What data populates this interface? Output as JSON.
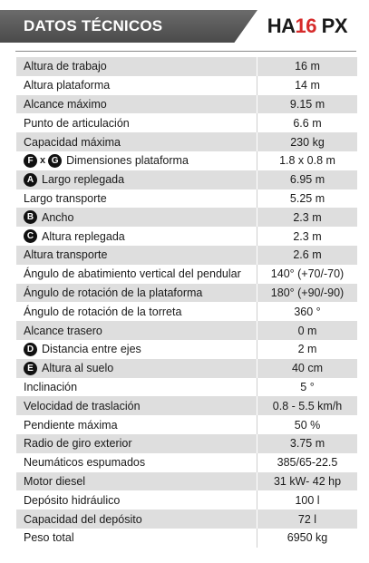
{
  "header": {
    "title": "DATOS TÉCNICOS",
    "model_prefix": "HA",
    "model_number": "16",
    "model_suffix": " PX"
  },
  "rows": [
    {
      "label": "Altura de trabajo",
      "value": "16 m"
    },
    {
      "label": "Altura plataforma",
      "value": "14 m"
    },
    {
      "label": "Alcance máximo",
      "value": "9.15 m"
    },
    {
      "label": "Punto de articulación",
      "value": "6.6 m"
    },
    {
      "label": "Capacidad máxima",
      "value": "230 kg"
    },
    {
      "badge": "F",
      "x": "x",
      "badge2": "G",
      "label": "Dimensiones plataforma",
      "value": "1.8 x 0.8 m"
    },
    {
      "badge": "A",
      "label": "Largo replegada",
      "value": "6.95 m"
    },
    {
      "label": "Largo transporte",
      "value": "5.25 m"
    },
    {
      "badge": "B",
      "label": "Ancho",
      "value": "2.3 m"
    },
    {
      "badge": "C",
      "label": "Altura replegada",
      "value": "2.3 m"
    },
    {
      "label": "Altura transporte",
      "value": "2.6 m"
    },
    {
      "label": "Ángulo de abatimiento vertical del pendular",
      "value": "140° (+70/-70)"
    },
    {
      "label": "Ángulo de rotación de la plataforma",
      "value": "180° (+90/-90)"
    },
    {
      "label": "Ángulo de rotación de la torreta",
      "value": "360 °"
    },
    {
      "label": "Alcance trasero",
      "value": "0 m"
    },
    {
      "badge": "D",
      "label": "Distancia entre ejes",
      "value": "2 m"
    },
    {
      "badge": "E",
      "label": "Altura al suelo",
      "value": "40 cm"
    },
    {
      "label": "Inclinación",
      "value": "5 °"
    },
    {
      "label": "Velocidad de traslación",
      "value": "0.8 - 5.5 km/h"
    },
    {
      "label": "Pendiente máxima",
      "value": "50 %"
    },
    {
      "label": "Radio de giro exterior",
      "value": "3.75 m"
    },
    {
      "label": "Neumáticos espumados",
      "value": "385/65-22.5"
    },
    {
      "label": "Motor diesel",
      "value": "31 kW- 42 hp"
    },
    {
      "label": "Depósito hidráulico",
      "value": "100 l"
    },
    {
      "label": "Capacidad del depósito",
      "value": "72 l"
    },
    {
      "label": "Peso total",
      "value": "6950 kg"
    }
  ]
}
